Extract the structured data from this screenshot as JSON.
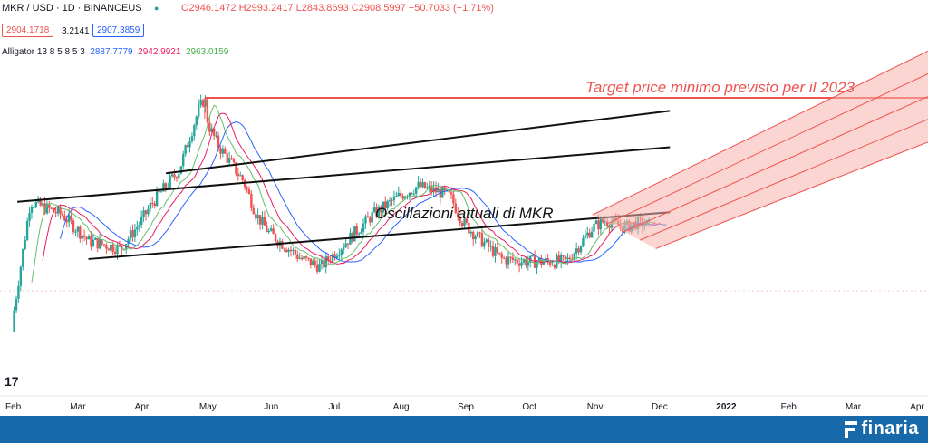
{
  "header": {
    "symbol": "MKR / USD · 1D · BINANCEUS",
    "ohlc": "O2946.1472 H2993.2417 L2843.8693 C2908.5997 −50.7033 (−1.71%)",
    "bid": "2904.1718",
    "spread": "3.2141",
    "ask": "2907.3859"
  },
  "indicator": {
    "name": "Alligator 13 8 5 8 5 3",
    "jaw": "2887.7779",
    "teeth": "2942.9921",
    "lips": "2963.0159"
  },
  "annotations": {
    "target": "Target price minimo previsto per il 2023",
    "oscillation": "Oscillazioni attuali di MKR"
  },
  "footer": {
    "brand": "finaria"
  },
  "colors": {
    "up": "#26a69a",
    "down": "#ef5350",
    "jaw": "#2962ff",
    "teeth": "#e91e63",
    "lips": "#66bb6a",
    "target": "#ef5350",
    "fan": "#f7b3ac",
    "footer": "#1769aa"
  },
  "chart_data": {
    "type": "line",
    "title": "MKR / USD · 1D · BINANCEUS",
    "x_ticks": [
      "Feb",
      "Mar",
      "Apr",
      "May",
      "Jun",
      "Jul",
      "Aug",
      "Sep",
      "Oct",
      "Nov",
      "Dec",
      "2022",
      "Feb",
      "Mar",
      "Apr"
    ],
    "price_path": {
      "x_month_index": [
        0,
        0.3,
        0.8,
        1.2,
        1.7,
        2.0,
        2.2,
        2.6,
        2.9,
        3.0,
        3.05,
        3.2,
        3.4,
        3.6,
        3.8,
        4.0,
        4.2,
        4.5,
        4.8,
        5.0,
        5.2,
        5.6,
        6.0,
        6.3,
        6.6,
        6.8,
        7.0,
        7.2,
        7.6,
        8.0,
        8.3,
        8.6,
        9.0,
        9.2,
        9.5,
        9.7,
        9.9
      ],
      "y_position": [
        0.1,
        0.6,
        0.55,
        0.45,
        0.42,
        0.52,
        0.6,
        0.72,
        0.95,
        1.0,
        0.9,
        0.82,
        0.75,
        0.68,
        0.55,
        0.48,
        0.44,
        0.38,
        0.35,
        0.4,
        0.45,
        0.55,
        0.62,
        0.66,
        0.64,
        0.62,
        0.52,
        0.47,
        0.38,
        0.37,
        0.37,
        0.37,
        0.5,
        0.53,
        0.5,
        0.52,
        0.51
      ]
    },
    "channel_lines": [
      {
        "from": [
          0.1,
          0.6
        ],
        "to": [
          10.2,
          0.81
        ]
      },
      {
        "from": [
          1.2,
          0.38
        ],
        "to": [
          10.2,
          0.56
        ]
      },
      {
        "from": [
          2.4,
          0.71
        ],
        "to": [
          10.2,
          0.95
        ]
      }
    ],
    "target_line_month_index": [
      3.0,
      14.4
    ],
    "ylim": [
      0,
      1
    ],
    "grid": false,
    "legend": "top-left"
  }
}
